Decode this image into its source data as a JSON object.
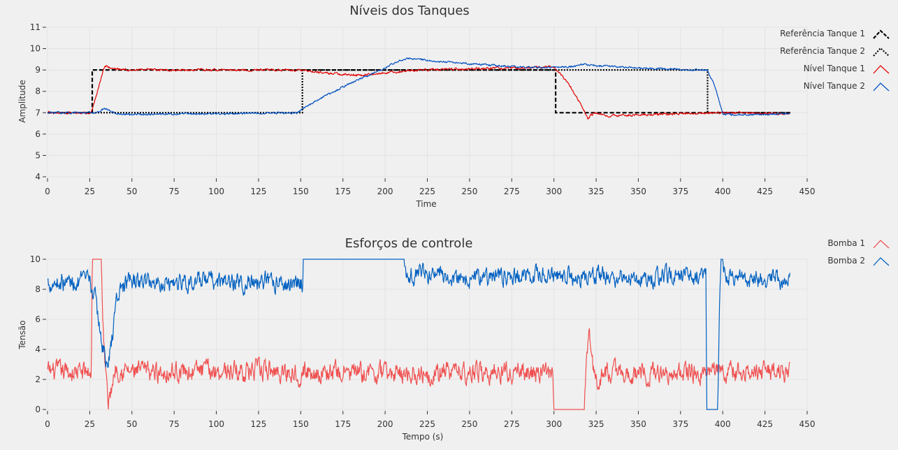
{
  "colors": {
    "background": "#f0f0f0",
    "grid": "#e3e3e3",
    "axis": "#333333",
    "ref1": "#000000",
    "ref2": "#000000",
    "tank1": "#e00000",
    "tank2": "#0050c0",
    "pump1": "#f05050",
    "pump2": "#0060c0"
  },
  "chart_data": [
    {
      "type": "line",
      "title": "Níveis dos Tanques",
      "xlabel": "Time",
      "ylabel": "Amplitude",
      "xlim": [
        0,
        450
      ],
      "ylim": [
        4,
        11
      ],
      "xticks": [
        0,
        25,
        50,
        75,
        100,
        125,
        150,
        175,
        200,
        225,
        250,
        275,
        300,
        325,
        350,
        375,
        400,
        425,
        450
      ],
      "yticks": [
        4,
        5,
        6,
        7,
        8,
        9,
        10,
        11
      ],
      "grid": true,
      "legend_position": "top-right",
      "series": [
        {
          "name": "Referência Tanque 1",
          "color": "#000000",
          "style": "dashed",
          "noise": 0,
          "x": [
            0,
            26.5,
            26.5,
            301,
            301,
            440
          ],
          "y": [
            7,
            7,
            9,
            9,
            7,
            7
          ]
        },
        {
          "name": "Referência Tanque 2",
          "color": "#000000",
          "style": "dotted",
          "noise": 0,
          "x": [
            0,
            151,
            151,
            391,
            391,
            440
          ],
          "y": [
            7,
            7,
            9,
            9,
            7,
            7
          ]
        },
        {
          "name": "Nível Tanque 1",
          "color": "#e00000",
          "style": "solid",
          "noise": 0.04,
          "x": [
            0,
            26,
            28,
            31,
            33,
            35,
            37,
            40,
            50,
            100,
            150,
            165,
            175,
            185,
            200,
            220,
            250,
            280,
            300,
            303,
            310,
            318,
            320,
            322,
            325,
            330,
            350,
            380,
            400,
            440
          ],
          "y": [
            7,
            7,
            7.6,
            8.4,
            9.0,
            9.2,
            9.1,
            9.05,
            9.0,
            9.0,
            9.0,
            8.85,
            8.8,
            8.75,
            8.85,
            9.0,
            9.05,
            9.1,
            9.15,
            8.9,
            8.2,
            7.1,
            6.7,
            6.9,
            7.0,
            6.85,
            6.9,
            6.95,
            7.0,
            6.95
          ]
        },
        {
          "name": "Nível Tanque 2",
          "color": "#0050c0",
          "style": "solid",
          "noise": 0.035,
          "x": [
            0,
            26,
            30,
            34,
            37,
            42,
            50,
            100,
            148,
            152,
            160,
            180,
            200,
            206,
            213,
            225,
            250,
            275,
            300,
            310,
            318,
            325,
            350,
            380,
            391,
            394,
            398,
            400,
            405,
            440
          ],
          "y": [
            7,
            7,
            7.05,
            7.2,
            7.1,
            6.92,
            6.92,
            6.95,
            7.0,
            7.2,
            7.6,
            8.4,
            9.1,
            9.35,
            9.55,
            9.45,
            9.3,
            9.15,
            9.1,
            9.15,
            9.25,
            9.2,
            9.1,
            9.0,
            9.0,
            8.5,
            7.5,
            6.95,
            6.9,
            6.95
          ]
        }
      ]
    },
    {
      "type": "line",
      "title": "Esforços de controle",
      "xlabel": "Tempo (s)",
      "ylabel": "Tensão",
      "xlim": [
        0,
        450
      ],
      "ylim": [
        0,
        10
      ],
      "xticks": [
        0,
        25,
        50,
        75,
        100,
        125,
        150,
        175,
        200,
        225,
        250,
        275,
        300,
        325,
        350,
        375,
        400,
        425,
        450
      ],
      "yticks": [
        0,
        2,
        4,
        6,
        8,
        10
      ],
      "grid": true,
      "legend_position": "top-right",
      "series": [
        {
          "name": "Bomba 1",
          "color": "#f05050",
          "style": "solid",
          "noise": 0.55,
          "x": [
            0,
            25,
            26,
            26.5,
            32,
            32.5,
            34,
            36,
            38,
            40,
            50,
            100,
            150,
            200,
            250,
            299,
            300,
            301,
            318,
            319,
            321,
            323,
            325,
            330,
            350,
            400,
            440
          ],
          "y": [
            2.5,
            2.5,
            2.5,
            10,
            10,
            7,
            3,
            0.3,
            1.5,
            2.8,
            2.5,
            2.6,
            2.5,
            2.4,
            2.5,
            2.4,
            0,
            0,
            0,
            2.5,
            5.3,
            3,
            1.8,
            2.5,
            2.4,
            2.5,
            2.5
          ]
        },
        {
          "name": "Bomba 2",
          "color": "#0060c0",
          "style": "solid",
          "noise": 0.5,
          "x": [
            0,
            25,
            28,
            30,
            33,
            36,
            38,
            41,
            45,
            50,
            100,
            150,
            151,
            151.5,
            211,
            211.5,
            212,
            250,
            300,
            350,
            389,
            390,
            390.5,
            397,
            398,
            399,
            400,
            402,
            440
          ],
          "y": [
            8.5,
            8.5,
            7.5,
            6.0,
            4.0,
            2.8,
            4.5,
            7.5,
            8.3,
            8.5,
            8.5,
            8.4,
            8.5,
            10,
            10,
            9.6,
            9.0,
            8.8,
            8.9,
            8.8,
            8.9,
            8.9,
            0,
            0,
            6.5,
            10,
            9.5,
            8.9,
            8.6
          ]
        }
      ]
    }
  ]
}
